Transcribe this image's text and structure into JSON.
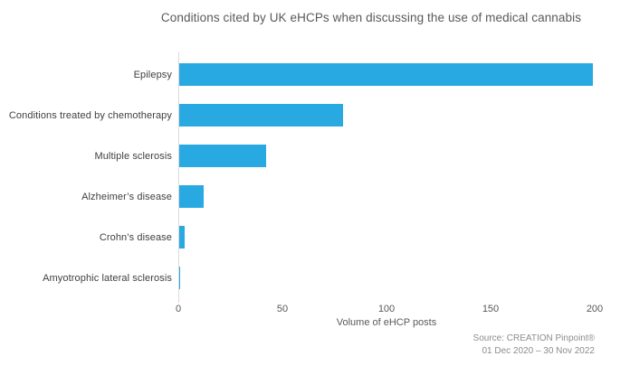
{
  "chart_data": {
    "type": "bar",
    "orientation": "horizontal",
    "title": "Conditions cited by UK eHCPs when discussing the use of medical cannabis",
    "categories": [
      "Epilepsy",
      "Conditions treated by chemotherapy",
      "Multiple sclerosis",
      "Alzheimer’s disease",
      "Crohn’s disease",
      "Amyotrophic lateral sclerosis"
    ],
    "values": [
      199,
      79,
      42,
      12,
      3,
      1
    ],
    "xlabel": "Volume of eHCP posts",
    "xlim": [
      0,
      200
    ],
    "xticks": [
      0,
      50,
      100,
      150,
      200
    ],
    "bar_color": "#29A9E1",
    "axis_line_color": "#d9d9d9",
    "grid": false,
    "legend": false
  },
  "source": {
    "line1": "Source: CREATION Pinpoint®",
    "line2": "01 Dec 2020 – 30 Nov 2022"
  }
}
